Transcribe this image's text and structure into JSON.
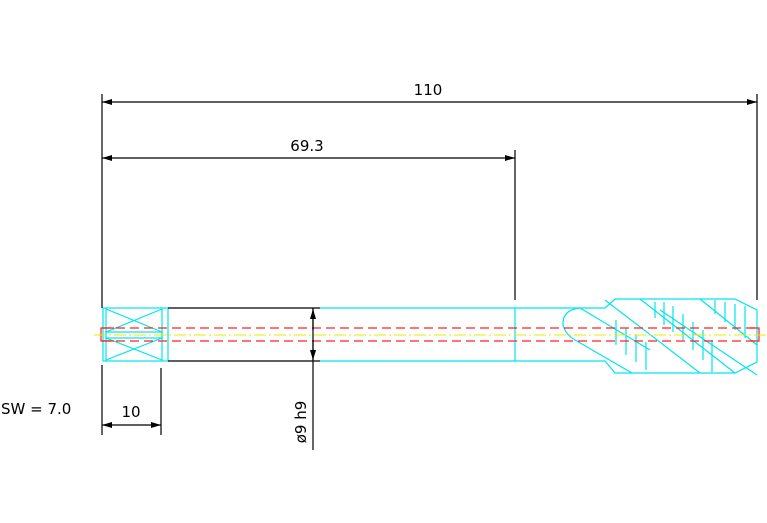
{
  "dimensions": {
    "overall_length": "110",
    "shank_length": "69.3",
    "square_length": "10",
    "diameter": "ø9 h9",
    "square_size": "SW = 7.0"
  },
  "colors": {
    "outline": "#000000",
    "tool_body": "#00e5ee",
    "hidden_bore": "#ff2020",
    "centerline": "#e8e800"
  }
}
